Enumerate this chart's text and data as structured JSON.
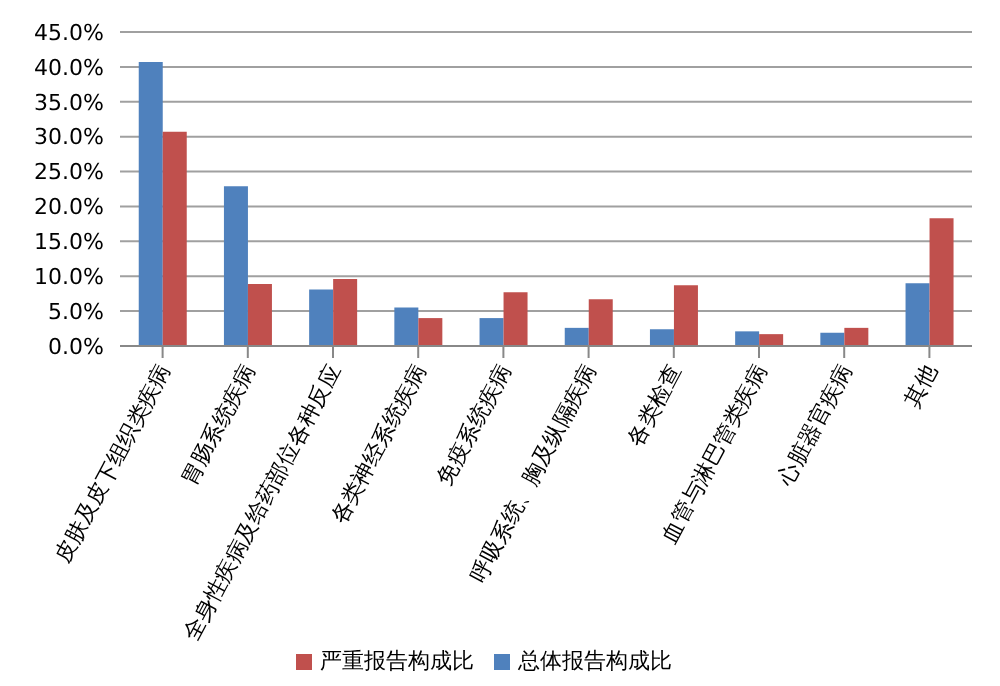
{
  "chart_data": {
    "type": "bar",
    "categories": [
      "皮肤及皮下组织类疾病",
      "胃肠系统疾病",
      "全身性疾病及给药部位各种反应",
      "各类神经系统疾病",
      "免疫系统疾病",
      "呼吸系统、胸及纵隔疾病",
      "各类检查",
      "血管与淋巴管类疾病",
      "心脏器官疾病",
      "其他"
    ],
    "series": [
      {
        "name": "总体报告构成比",
        "color": "#4f81bd",
        "values": [
          40.7,
          22.9,
          8.1,
          5.5,
          4.0,
          2.6,
          2.4,
          2.1,
          1.9,
          9.0
        ]
      },
      {
        "name": "严重报告构成比",
        "color": "#c0504d",
        "values": [
          30.7,
          8.9,
          9.6,
          4.0,
          7.7,
          6.7,
          8.7,
          1.7,
          2.6,
          18.3
        ]
      }
    ],
    "ylim": [
      0,
      45
    ],
    "yticks": [
      {
        "value": 0,
        "label": "0.0%"
      },
      {
        "value": 5,
        "label": "5.0%"
      },
      {
        "value": 10,
        "label": "10.0%"
      },
      {
        "value": 15,
        "label": "15.0%"
      },
      {
        "value": 20,
        "label": "20.0%"
      },
      {
        "value": 25,
        "label": "25.0%"
      },
      {
        "value": 30,
        "label": "30.0%"
      },
      {
        "value": 35,
        "label": "35.0%"
      },
      {
        "value": 40,
        "label": "40.0%"
      },
      {
        "value": 45,
        "label": "45.0%"
      }
    ],
    "grid": "y",
    "legend": "bottom"
  }
}
